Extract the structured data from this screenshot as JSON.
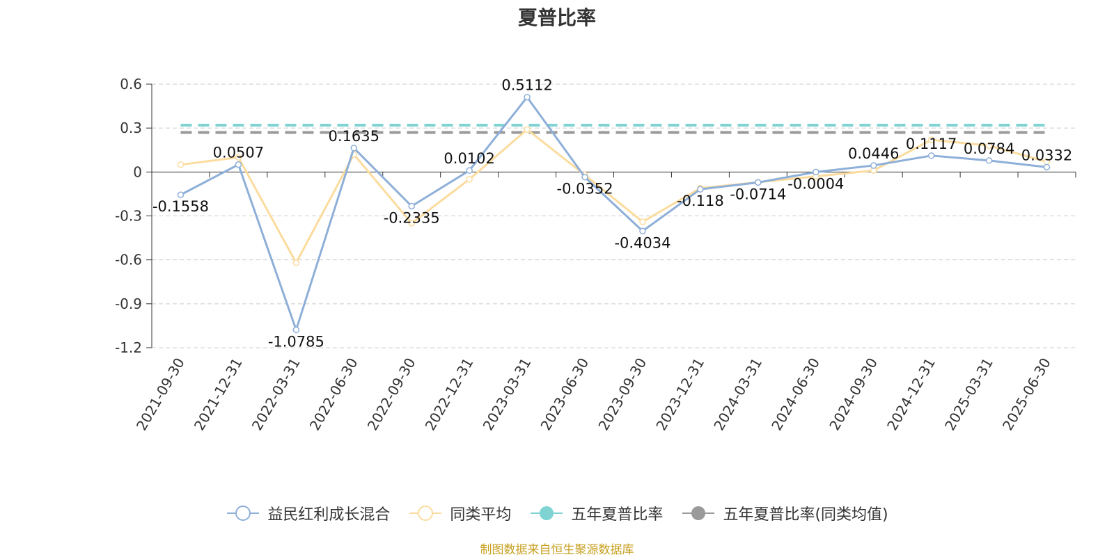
{
  "title": "夏普比率",
  "source_note": "制图数据来自恒生聚源数据库",
  "colors": {
    "fund": "#8eafd8",
    "peer": "#fbdc9e",
    "five_year": "#7fd3d3",
    "five_year_peer": "#9a9a9a",
    "axis": "#333333",
    "grid": "#cccccc",
    "source": "#c8a020"
  },
  "chart_data": {
    "type": "line",
    "title": "夏普比率",
    "categories": [
      "2021-09-30",
      "2021-12-31",
      "2022-03-31",
      "2022-06-30",
      "2022-09-30",
      "2022-12-31",
      "2023-03-31",
      "2023-06-30",
      "2023-09-30",
      "2023-12-31",
      "2024-03-31",
      "2024-06-30",
      "2024-09-30",
      "2024-12-31",
      "2025-03-31",
      "2025-06-30"
    ],
    "ylim": [
      -1.2,
      0.6
    ],
    "yticks": [
      "0.6",
      "0.3",
      "0",
      "-0.3",
      "-0.6",
      "-0.9",
      "-1.2"
    ],
    "grid": true,
    "legend_position": "bottom",
    "series": [
      {
        "name": "益民红利成长混合",
        "values": [
          -0.1558,
          0.0507,
          -1.0785,
          0.1635,
          -0.2335,
          0.0102,
          0.5112,
          -0.0352,
          -0.4034,
          -0.118,
          -0.0714,
          -0.0004,
          0.0446,
          0.1117,
          0.0784,
          0.0332
        ],
        "labels": [
          "-0.1558",
          "0.0507",
          "-1.0785",
          "0.1635",
          "-0.2335",
          "0.0102",
          "0.5112",
          "-0.0352",
          "-0.4034",
          "-0.118",
          "-0.0714",
          "-0.0004",
          "0.0446",
          "0.1117",
          "0.0784",
          "0.0332"
        ]
      },
      {
        "name": "同类平均",
        "values": [
          0.05,
          0.1,
          -0.62,
          0.12,
          -0.35,
          -0.05,
          0.29,
          -0.02,
          -0.34,
          -0.11,
          -0.07,
          -0.03,
          0.01,
          0.22,
          0.18,
          0.07
        ]
      },
      {
        "name": "五年夏普比率",
        "type": "hline",
        "value": 0.32
      },
      {
        "name": "五年夏普比率(同类均值)",
        "type": "hline",
        "value": 0.27
      }
    ]
  }
}
